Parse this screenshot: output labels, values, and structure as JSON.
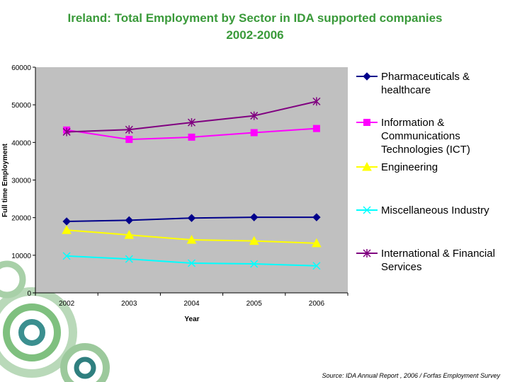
{
  "chart_data": {
    "type": "line",
    "title": "Ireland: Total Employment by Sector in IDA supported companies",
    "subtitle": "2002-2006",
    "xlabel": "Year",
    "ylabel": "Full time Employment",
    "x": [
      "2002",
      "2003",
      "2004",
      "2005",
      "2006"
    ],
    "ylim": [
      0,
      60000
    ],
    "yticks": [
      0,
      10000,
      20000,
      30000,
      40000,
      50000,
      60000
    ],
    "grid": false,
    "legend": "right",
    "series": [
      {
        "name": "Pharmaceuticals & healthcare",
        "name_lines": [
          "Pharmaceuticals &",
          "healthcare"
        ],
        "values": [
          19000,
          19300,
          19900,
          20100,
          20100
        ],
        "color": "#00008b",
        "marker": "diamond"
      },
      {
        "name": "Information & Communications Technologies (ICT)",
        "name_lines": [
          "Information &",
          "Communications",
          "Technologies (ICT)"
        ],
        "values": [
          43300,
          40800,
          41400,
          42600,
          43700
        ],
        "color": "#ff00ff",
        "marker": "square"
      },
      {
        "name": "Engineering",
        "name_lines": [
          "Engineering"
        ],
        "values": [
          16700,
          15400,
          14100,
          13800,
          13200
        ],
        "color": "#ffff00",
        "marker": "triangle"
      },
      {
        "name": "Miscellaneous Industry",
        "name_lines": [
          "Miscellaneous Industry"
        ],
        "values": [
          9800,
          9000,
          7900,
          7700,
          7200
        ],
        "color": "#00ffff",
        "marker": "x"
      },
      {
        "name": "International & Financial Services",
        "name_lines": [
          "International & Financial",
          "Services"
        ],
        "values": [
          42800,
          43400,
          45300,
          47100,
          50900
        ],
        "color": "#800080",
        "marker": "star"
      }
    ],
    "plot_background": "#c0c0c0"
  },
  "footer": {
    "source": "Source: IDA Annual Report , 2006 / Forfas Employment Survey"
  }
}
